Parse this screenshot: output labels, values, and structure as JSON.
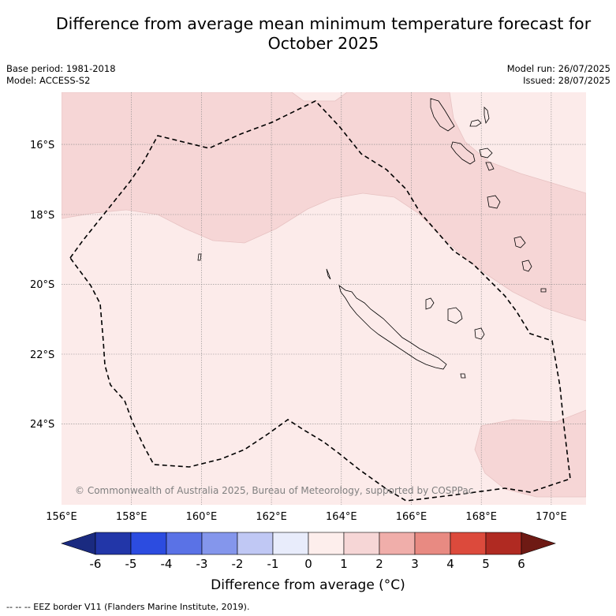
{
  "title_line1": "Difference from average mean minimum temperature forecast for",
  "title_line2": "October 2025",
  "base_period": "Base period: 1981-2018",
  "model": "Model: ACCESS-S2",
  "model_run": "Model run: 26/07/2025",
  "issued": "Issued: 28/07/2025",
  "copyright": "© Commonwealth of Australia 2025, Bureau of Meteorology, supported by COSPPac",
  "map": {
    "lon_ticks": [
      "156°E",
      "158°E",
      "160°E",
      "162°E",
      "164°E",
      "166°E",
      "168°E",
      "170°E"
    ],
    "lat_ticks": [
      "16°S",
      "18°S",
      "20°S",
      "22°S",
      "24°S"
    ],
    "lon_range": [
      156,
      171
    ],
    "lat_range": [
      -26,
      -14.5
    ],
    "colors": {
      "band_0_1": "#fcebea",
      "band_1_2": "#f6d6d6",
      "outline": "#000000"
    }
  },
  "colorbar": {
    "labels": [
      "-6",
      "-5",
      "-4",
      "-3",
      "-2",
      "-1",
      "0",
      "1",
      "2",
      "3",
      "4",
      "5",
      "6"
    ],
    "colors": [
      "#2236a8",
      "#2c4ce0",
      "#5a72e6",
      "#8496ec",
      "#c0c8f4",
      "#e8ecfb",
      "#fdeeec",
      "#f6d6d6",
      "#f0aeaa",
      "#e88a82",
      "#dc4a3c",
      "#b02a22"
    ],
    "low_extend": "#1a2a80",
    "high_extend": "#6e1a14",
    "label": "Difference from average (°C)"
  },
  "footer": "--  --  -- EEZ border V11 (Flanders Marine Institute, 2019)."
}
